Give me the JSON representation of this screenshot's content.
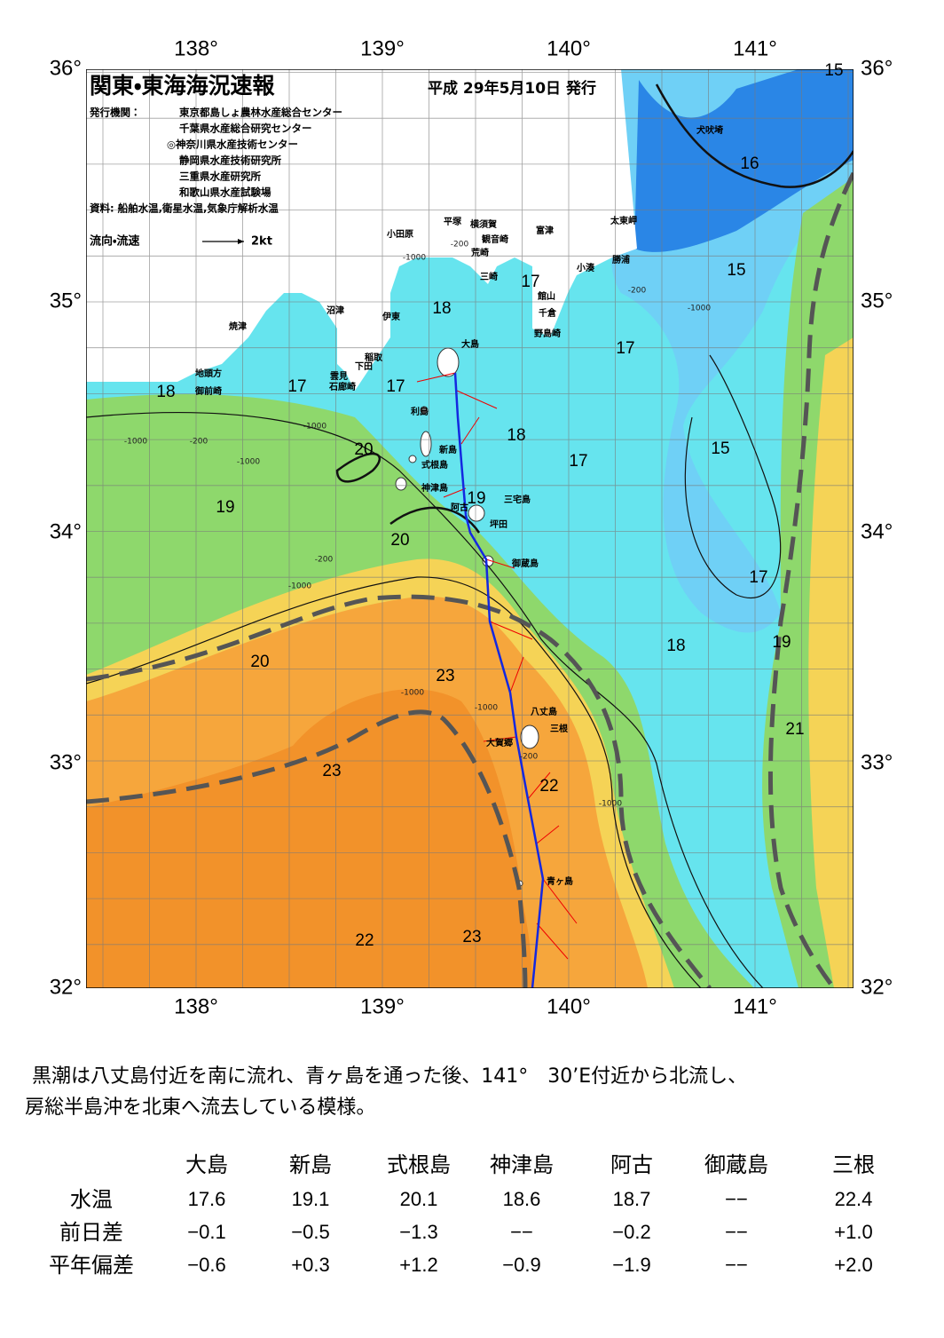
{
  "header": {
    "title": "関東・東海海況速報",
    "date": "平成 29年5月10日 発行",
    "publisher_label": "発行機関：",
    "publishers": [
      "東京都島しょ農林水産総合センター",
      "千葉県水産総合研究センター",
      "◎神奈川県水産技術センター",
      "静岡県水産技術研究所",
      "三重県水産研究所",
      "和歌山県水産試験場"
    ],
    "sources": "資料: 船舶水温,衛星水温,気象庁解析水温",
    "legend_label": "流向・流速",
    "legend_scale": "2kt"
  },
  "map": {
    "lon_labels": [
      "138°",
      "139°",
      "140°",
      "141°"
    ],
    "lat_labels": [
      "36°",
      "35°",
      "34°",
      "33°",
      "32°"
    ],
    "place_names": [
      "犬吠埼",
      "太東岬",
      "勝浦",
      "小湊",
      "富津",
      "小田原",
      "平塚",
      "横須賀",
      "観音崎",
      "荒崎",
      "三崎",
      "館山",
      "千倉",
      "野島崎",
      "沼津",
      "伊東",
      "焼津",
      "大島",
      "稲取",
      "下田",
      "雲見",
      "石廊崎",
      "地頭方",
      "御前崎",
      "利島",
      "新島",
      "式根島",
      "神津島",
      "三宅島",
      "阿古",
      "坪田",
      "御蔵島",
      "八丈島",
      "三根",
      "大賀郷",
      "青ヶ島"
    ],
    "isotherm_labels": [
      15,
      16,
      15,
      17,
      18,
      17,
      18,
      17,
      17,
      18,
      17,
      15,
      20,
      19,
      19,
      20,
      17,
      18,
      19,
      20,
      23,
      21,
      23,
      22,
      22,
      23
    ],
    "depth_labels": [
      "-200",
      "-1000",
      "-200",
      "-1000",
      "-1000",
      "-200",
      "-1000",
      "-1000",
      "-200",
      "-1000",
      "-1000",
      "-1000",
      "-200",
      "-1000"
    ]
  },
  "summary": [
    "黒潮は八丈島付近を南に流れ、青ヶ島を通った後、141°　30’E付近から北流し、",
    "房総半島沖を北東へ流去している模様。"
  ],
  "table": {
    "columns": [
      "大島",
      "新島",
      "式根島",
      "神津島",
      "阿古",
      "御蔵島",
      "三根"
    ],
    "rows": [
      {
        "label": "水温",
        "values": [
          "17.6",
          "19.1",
          "20.1",
          "18.6",
          "18.7",
          "−−",
          "22.4"
        ]
      },
      {
        "label": "前日差",
        "values": [
          "−0.1",
          "−0.5",
          "−1.3",
          "−−",
          "−0.2",
          "−−",
          "+1.0"
        ]
      },
      {
        "label": "平年偏差",
        "values": [
          "−0.6",
          "+0.3",
          "+1.2",
          "−0.9",
          "−1.9",
          "−−",
          "+2.0"
        ]
      }
    ]
  }
}
